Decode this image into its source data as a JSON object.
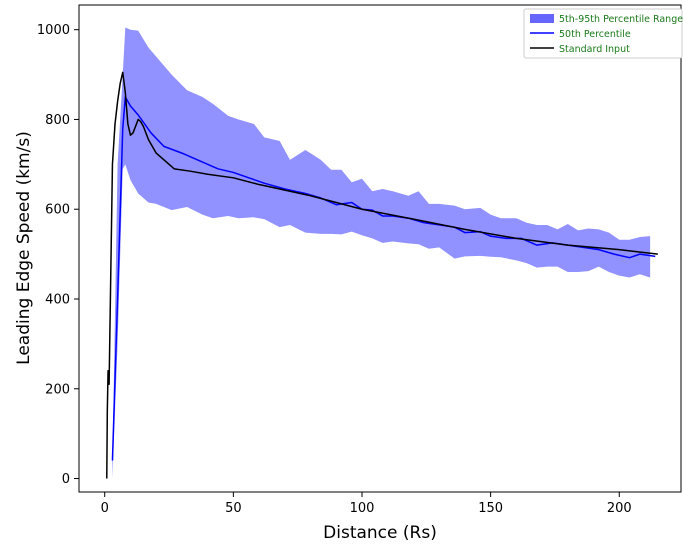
{
  "chart_data": {
    "type": "line",
    "title": "",
    "xlabel": "Distance (Rs)",
    "ylabel": "Leading Edge Speed (km/s)",
    "xlim": [
      -10,
      224
    ],
    "ylim": [
      -30,
      1055
    ],
    "xticks": [
      0,
      50,
      100,
      150,
      200
    ],
    "yticks": [
      0,
      200,
      400,
      600,
      800,
      1000
    ],
    "grid": false,
    "legend_position": "top-right",
    "colors": {
      "band": "#6666ff",
      "p50": "#0000ff",
      "standard": "#000000"
    },
    "series": [
      {
        "name": "5th-95th Percentile Range",
        "kind": "band",
        "x": [
          3,
          5,
          7,
          8,
          10,
          13,
          17,
          20,
          26,
          32,
          38,
          42,
          48,
          52,
          58,
          62,
          68,
          72,
          78,
          84,
          88,
          92,
          96,
          100,
          104,
          108,
          112,
          118,
          122,
          126,
          130,
          136,
          140,
          146,
          150,
          154,
          160,
          164,
          168,
          172,
          176,
          180,
          184,
          188,
          192,
          196,
          200,
          204,
          208,
          212
        ],
        "lower": [
          0,
          300,
          690,
          700,
          665,
          635,
          615,
          612,
          598,
          605,
          588,
          580,
          585,
          580,
          582,
          578,
          560,
          565,
          548,
          545,
          545,
          544,
          550,
          542,
          535,
          525,
          528,
          524,
          522,
          512,
          515,
          490,
          495,
          496,
          494,
          493,
          486,
          480,
          470,
          472,
          472,
          460,
          460,
          462,
          472,
          460,
          452,
          448,
          455,
          448
        ],
        "upper": [
          40,
          700,
          900,
          1005,
          1000,
          998,
          960,
          940,
          900,
          865,
          850,
          835,
          808,
          800,
          790,
          760,
          752,
          710,
          732,
          710,
          688,
          688,
          660,
          668,
          640,
          645,
          640,
          630,
          640,
          612,
          612,
          608,
          600,
          603,
          588,
          580,
          580,
          570,
          565,
          565,
          555,
          567,
          553,
          557,
          555,
          548,
          532,
          532,
          538,
          540
        ]
      },
      {
        "name": "50th Percentile",
        "kind": "line",
        "x": [
          3,
          5,
          7,
          8,
          10,
          13,
          18,
          23,
          30,
          38,
          44,
          50,
          56,
          62,
          70,
          78,
          84,
          90,
          96,
          100,
          104,
          108,
          112,
          118,
          124,
          130,
          136,
          140,
          146,
          150,
          156,
          162,
          168,
          174,
          180,
          186,
          192,
          198,
          204,
          208,
          214
        ],
        "y": [
          40,
          400,
          780,
          850,
          830,
          810,
          770,
          740,
          725,
          705,
          690,
          682,
          670,
          658,
          645,
          635,
          625,
          610,
          615,
          600,
          598,
          585,
          585,
          580,
          570,
          565,
          560,
          548,
          550,
          540,
          535,
          535,
          520,
          525,
          520,
          515,
          510,
          500,
          492,
          500,
          495
        ]
      },
      {
        "name": "Standard Input",
        "kind": "line",
        "x": [
          0.8,
          1.0,
          1.3,
          1.7,
          2.2,
          3.0,
          4.0,
          5.0,
          6.0,
          7.0,
          8.0,
          9.0,
          10.0,
          11.0,
          12.0,
          13.0,
          14.0,
          15.0,
          17.0,
          20.0,
          23.0,
          27.0,
          33.0,
          40.0,
          50.0,
          60.0,
          80.0,
          100.0,
          120.0,
          140.0,
          160.0,
          180.0,
          200.0,
          215.0
        ],
        "y": [
          0,
          150,
          240,
          210,
          400,
          700,
          790,
          840,
          880,
          905,
          860,
          790,
          765,
          770,
          785,
          800,
          795,
          785,
          755,
          725,
          710,
          690,
          685,
          678,
          670,
          655,
          630,
          600,
          578,
          555,
          535,
          520,
          510,
          500
        ]
      }
    ]
  }
}
